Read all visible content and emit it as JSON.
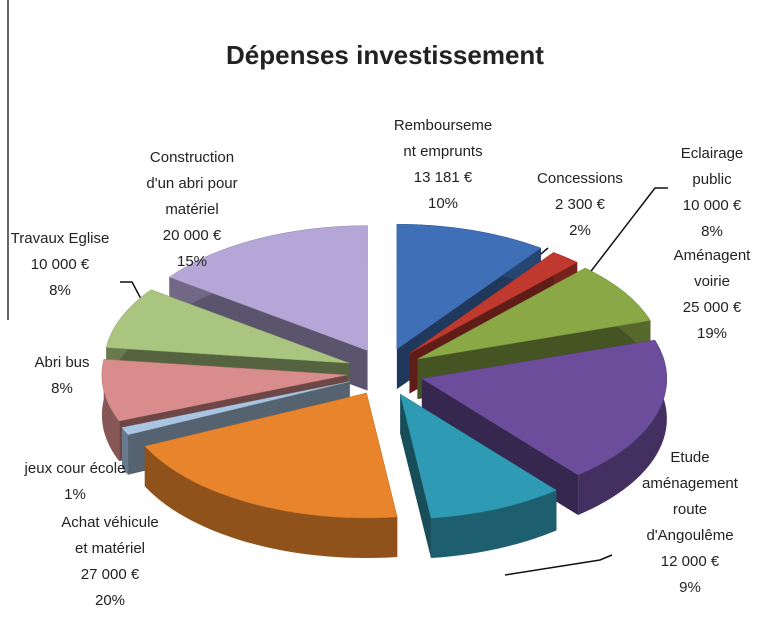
{
  "chart_data": {
    "type": "pie3d",
    "title": "Dépenses investissement",
    "categories": [
      "Rembourseme\nnt emprunts",
      "Concessions",
      "Eclairage\npublic",
      "Aménagent\nvoirie",
      "Etude\naménagement\nroute\nd'Angoulême",
      "Achat véhicule\net matériel",
      "jeux cour école",
      "Abri bus",
      "Travaux Eglise",
      "Construction\nd'un abri pour\nmatériel"
    ],
    "values": [
      10,
      2,
      8,
      19,
      9,
      20,
      1,
      8,
      8,
      15
    ],
    "value_labels": [
      "10%",
      "2%",
      "8%",
      "19%",
      "9%",
      "20%",
      "1%",
      "8%",
      "8%",
      "15%"
    ],
    "amount_labels": [
      "13 181 €",
      "2 300 €",
      "10 000 €",
      "25 000 €",
      "12 000 €",
      "27 000 €",
      null,
      null,
      "10 000 €",
      "20 000 €"
    ],
    "colors": [
      "#3f6fb6",
      "#c0392f",
      "#8aa845",
      "#6c4d9c",
      "#2f9ab3",
      "#e8842c",
      "#a9c5e2",
      "#d98c8c",
      "#aac580",
      "#b4a7d7"
    ]
  }
}
